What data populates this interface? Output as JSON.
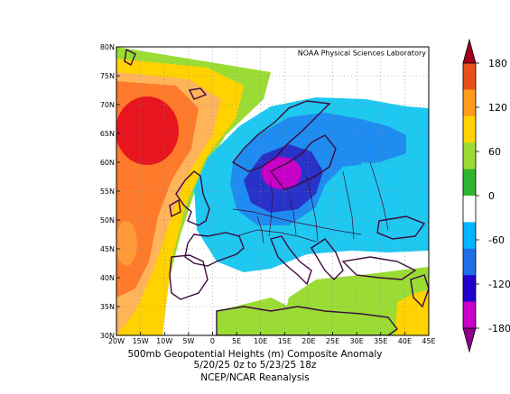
{
  "credit": "NOAA Physical Sciences Laboratory",
  "caption": {
    "line1": "500mb Geopotential Heights (m)   Composite Anomaly",
    "line2": "5/20/25 0z  to 5/23/25 18z",
    "line3": "NCEP/NCAR Reanalysis"
  },
  "lat_ticks": [
    "80N",
    "75N",
    "70N",
    "65N",
    "60N",
    "55N",
    "50N",
    "45N",
    "40N",
    "35N",
    "30N"
  ],
  "lon_ticks": [
    "20W",
    "15W",
    "10W",
    "5W",
    "0",
    "5E",
    "10E",
    "15E",
    "20E",
    "25E",
    "30E",
    "35E",
    "40E",
    "45E"
  ],
  "colorbar": {
    "labels": [
      "180",
      "120",
      "60",
      "0",
      "-60",
      "-120",
      "-180"
    ],
    "colors": [
      "#a0001e",
      "#e8501a",
      "#ff9a1a",
      "#ffd200",
      "#9adc34",
      "#2fb42f",
      "#ffffff",
      "#00b4ff",
      "#1e6ee6",
      "#2200cc",
      "#c800c8",
      "#8c008c"
    ]
  },
  "map_colors": {
    "orange1": "#ffb45a",
    "orange2": "#ff7a2a",
    "red": "#e8141e",
    "yellow": "#ffd200",
    "green": "#9adc34",
    "lightblue": "#1ec8f0",
    "midblue": "#1e8cf0",
    "deepblue": "#2832c8",
    "magenta": "#c800c8",
    "coast": "#3c0a3c"
  }
}
